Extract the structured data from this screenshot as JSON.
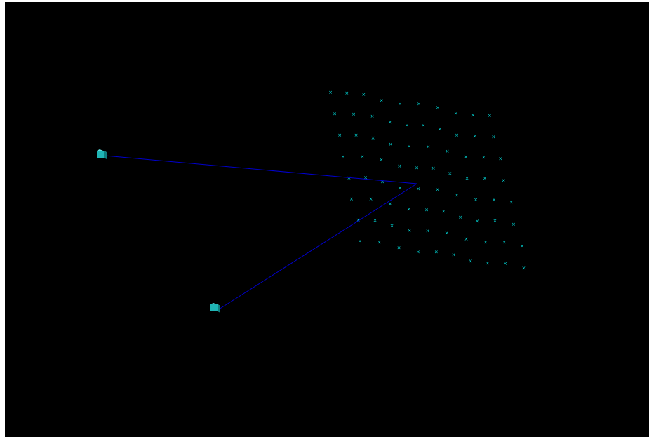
{
  "scene": {
    "background_color": "#000000",
    "marker_color": "#00e5e5",
    "ray_color": "#0000cc",
    "camera_color": "#1fb5b5",
    "marker_glyph": "×",
    "grid_point_count": 80,
    "camera_count": 2
  }
}
